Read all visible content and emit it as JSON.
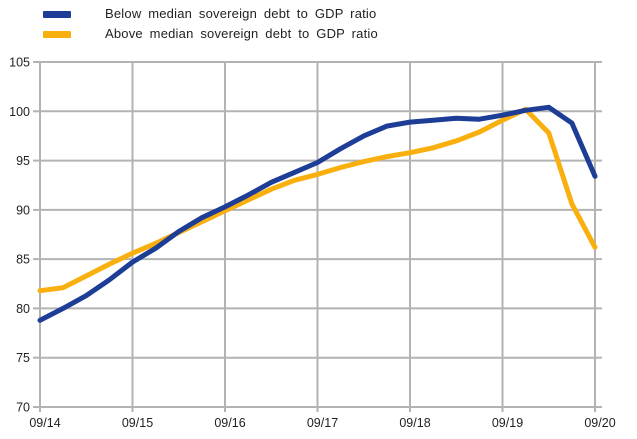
{
  "chart_data": {
    "type": "line",
    "title": "",
    "x": [
      "09/14",
      "12/14",
      "03/15",
      "06/15",
      "09/15",
      "12/15",
      "03/16",
      "06/16",
      "09/16",
      "12/16",
      "03/17",
      "06/17",
      "09/17",
      "12/17",
      "03/18",
      "06/18",
      "09/18",
      "12/18",
      "03/19",
      "06/19",
      "09/19",
      "12/19",
      "03/20",
      "06/20",
      "09/20"
    ],
    "x_axis_tick_labels": [
      "09/14",
      "09/15",
      "09/16",
      "09/17",
      "09/18",
      "09/19",
      "09/20"
    ],
    "y_ticks": [
      70,
      75,
      80,
      85,
      90,
      95,
      100,
      105
    ],
    "ylim": [
      70,
      105
    ],
    "grid": true,
    "legend_position": "top-left",
    "series": [
      {
        "name": "Below median sovereign debt to GDP ratio",
        "color": "#1e3d96",
        "values": [
          78.8,
          80.0,
          81.3,
          82.9,
          84.7,
          86.1,
          87.8,
          89.2,
          90.3,
          91.5,
          92.8,
          93.8,
          94.8,
          96.2,
          97.5,
          98.5,
          98.9,
          99.1,
          99.3,
          99.2,
          99.6,
          100.1,
          100.4,
          98.8,
          93.4
        ]
      },
      {
        "name": "Above median sovereign debt to GDP ratio",
        "color": "#f9b00e",
        "values": [
          81.8,
          82.1,
          83.3,
          84.5,
          85.6,
          86.6,
          87.7,
          88.8,
          89.9,
          91.0,
          92.1,
          93.0,
          93.6,
          94.3,
          94.9,
          95.4,
          95.8,
          96.3,
          97.0,
          97.9,
          99.1,
          100.2,
          97.8,
          90.6,
          86.2
        ]
      }
    ]
  },
  "colors": {
    "grid": "#b3b3b3",
    "axis_text": "#222222",
    "background": "#ffffff"
  }
}
